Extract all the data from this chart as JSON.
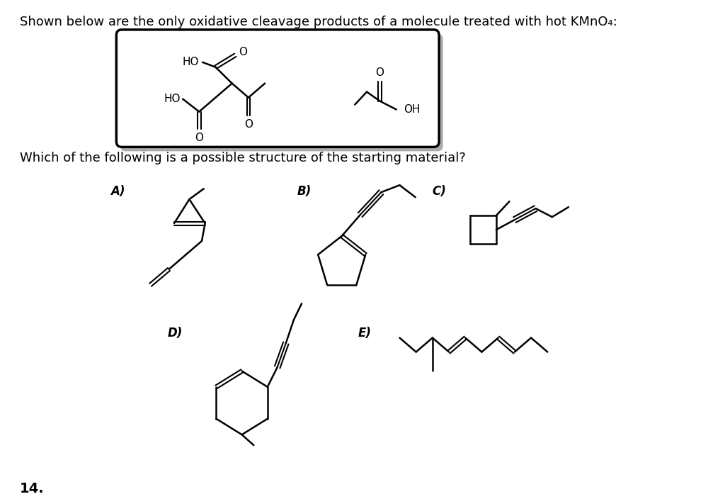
{
  "title_text": "Shown below are the only oxidative cleavage products of a molecule treated with hot KMnO₄:",
  "question_text": "Which of the following is a possible structure of the starting material?",
  "footnote": "14.",
  "bg_color": "#ffffff",
  "text_color": "#000000",
  "line_color": "#000000",
  "font_size_title": 13,
  "font_size_label": 11
}
